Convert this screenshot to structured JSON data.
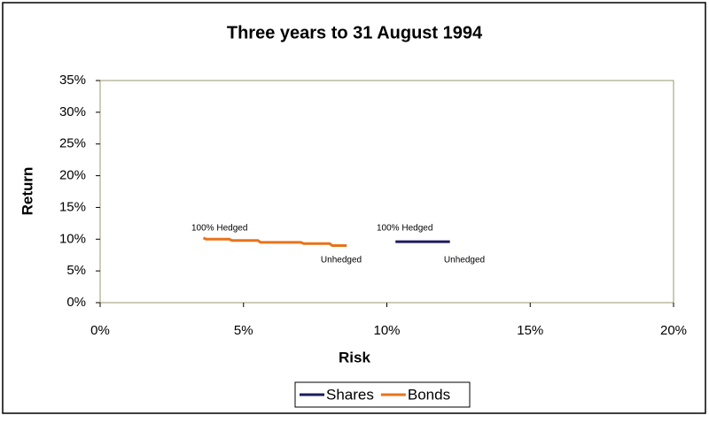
{
  "chart_data": {
    "type": "line",
    "title": "Three years to 31 August 1994",
    "x_label": "Risk",
    "y_label": "Return",
    "xlim": [
      0,
      20
    ],
    "ylim": [
      0,
      35
    ],
    "xticks": [
      {
        "value": 0,
        "label": "0%"
      },
      {
        "value": 5,
        "label": "5%"
      },
      {
        "value": 10,
        "label": "10%"
      },
      {
        "value": 15,
        "label": "15%"
      },
      {
        "value": 20,
        "label": "20%"
      }
    ],
    "yticks": [
      {
        "value": 0,
        "label": "0%"
      },
      {
        "value": 5,
        "label": "5%"
      },
      {
        "value": 10,
        "label": "10%"
      },
      {
        "value": 15,
        "label": "15%"
      },
      {
        "value": 20,
        "label": "20%"
      },
      {
        "value": 25,
        "label": "25%"
      },
      {
        "value": 30,
        "label": "30%"
      },
      {
        "value": 35,
        "label": "35%"
      }
    ],
    "series": [
      {
        "name": "Shares",
        "color": "#1c1c5c",
        "x": [
          10.3,
          12.2
        ],
        "values": [
          9.6,
          9.6
        ]
      },
      {
        "name": "Bonds",
        "color": "#e8731a",
        "x": [
          3.6,
          3.7,
          4.5,
          4.6,
          5.5,
          5.6,
          7.0,
          7.1,
          8.0,
          8.1,
          8.6
        ],
        "values": [
          10.2,
          10.0,
          10.0,
          9.8,
          9.8,
          9.5,
          9.5,
          9.3,
          9.3,
          9.0,
          9.0
        ]
      }
    ],
    "annotations": [
      "100% Hedged",
      "Unhedged",
      "100% Hedged",
      "Unhedged"
    ],
    "legend": "bottom"
  }
}
